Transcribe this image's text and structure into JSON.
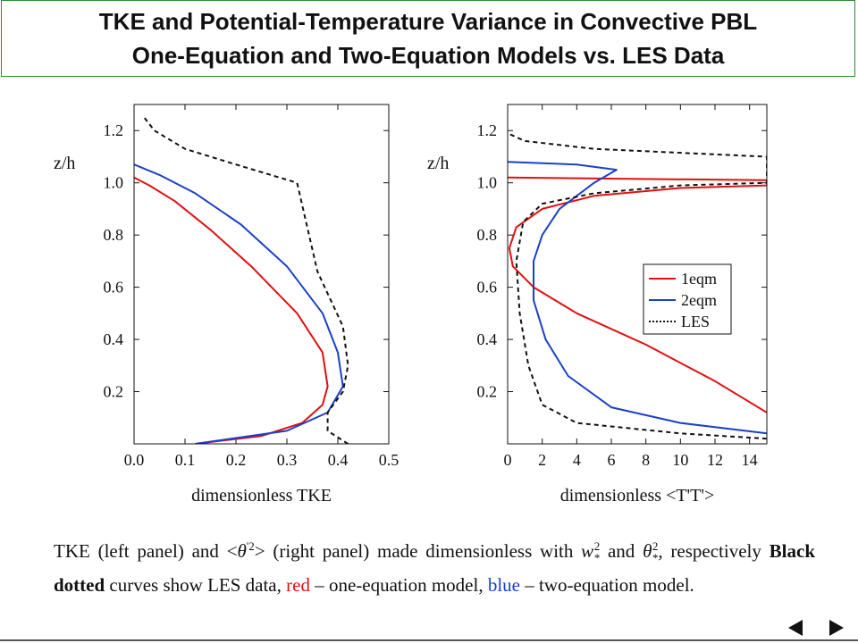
{
  "title": {
    "line1": "TKE and Potential-Temperature Variance in Convective PBL",
    "line2": "One-Equation and Two-Equation Models vs. LES Data"
  },
  "chart_data": [
    {
      "type": "line",
      "xlabel": "dimensionless TKE",
      "ylabel": "z/h",
      "xlim": [
        0.0,
        0.5
      ],
      "ylim": [
        0,
        1.3
      ],
      "xticks": [
        "0.0",
        "0.1",
        "0.2",
        "0.3",
        "0.4",
        "0.5"
      ],
      "yticks": [
        "0.2",
        "0.4",
        "0.6",
        "0.8",
        "1.0",
        "1.2"
      ],
      "series": [
        {
          "name": "1eqm",
          "color": "#e01010",
          "style": "solid",
          "points": [
            [
              0.12,
              0.0
            ],
            [
              0.25,
              0.03
            ],
            [
              0.33,
              0.08
            ],
            [
              0.37,
              0.15
            ],
            [
              0.38,
              0.22
            ],
            [
              0.37,
              0.35
            ],
            [
              0.32,
              0.5
            ],
            [
              0.23,
              0.68
            ],
            [
              0.15,
              0.82
            ],
            [
              0.08,
              0.93
            ],
            [
              0.03,
              0.99
            ],
            [
              0.0,
              1.02
            ]
          ]
        },
        {
          "name": "2eqm",
          "color": "#1a40c8",
          "style": "solid",
          "points": [
            [
              0.12,
              0.0
            ],
            [
              0.3,
              0.05
            ],
            [
              0.38,
              0.12
            ],
            [
              0.41,
              0.22
            ],
            [
              0.4,
              0.35
            ],
            [
              0.37,
              0.5
            ],
            [
              0.3,
              0.68
            ],
            [
              0.21,
              0.84
            ],
            [
              0.12,
              0.96
            ],
            [
              0.05,
              1.03
            ],
            [
              0.0,
              1.07
            ]
          ]
        },
        {
          "name": "LES",
          "color": "#111111",
          "style": "dotted",
          "points": [
            [
              0.42,
              0.0
            ],
            [
              0.38,
              0.05
            ],
            [
              0.38,
              0.12
            ],
            [
              0.41,
              0.2
            ],
            [
              0.42,
              0.3
            ],
            [
              0.41,
              0.45
            ],
            [
              0.36,
              0.66
            ],
            [
              0.32,
              1.0
            ],
            [
              0.2,
              1.07
            ],
            [
              0.1,
              1.13
            ],
            [
              0.04,
              1.2
            ],
            [
              0.02,
              1.25
            ]
          ]
        }
      ]
    },
    {
      "type": "line",
      "xlabel": "dimensionless <T'T'>",
      "ylabel": "z/h",
      "xlim": [
        0,
        15
      ],
      "ylim": [
        0,
        1.3
      ],
      "xticks": [
        "0",
        "2",
        "4",
        "6",
        "8",
        "10",
        "12",
        "14"
      ],
      "yticks": [
        "0.2",
        "0.4",
        "0.6",
        "0.8",
        "1.0",
        "1.2"
      ],
      "legend": {
        "position": "right",
        "entries": [
          "1eqm",
          "2eqm",
          "LES"
        ]
      },
      "series": [
        {
          "name": "1eqm",
          "color": "#e01010",
          "style": "solid",
          "points": [
            [
              15,
              0.12
            ],
            [
              12,
              0.24
            ],
            [
              8,
              0.38
            ],
            [
              4,
              0.5
            ],
            [
              1.5,
              0.6
            ],
            [
              0.3,
              0.68
            ],
            [
              0.1,
              0.75
            ],
            [
              0.5,
              0.83
            ],
            [
              2,
              0.9
            ],
            [
              5,
              0.95
            ],
            [
              10,
              0.98
            ],
            [
              15,
              0.99
            ],
            [
              15,
              1.01
            ],
            [
              0.0,
              1.02
            ]
          ]
        },
        {
          "name": "2eqm",
          "color": "#1a40c8",
          "style": "solid",
          "points": [
            [
              15,
              0.04
            ],
            [
              10,
              0.08
            ],
            [
              6,
              0.14
            ],
            [
              3.5,
              0.26
            ],
            [
              2.2,
              0.4
            ],
            [
              1.5,
              0.55
            ],
            [
              1.5,
              0.7
            ],
            [
              2,
              0.8
            ],
            [
              3,
              0.9
            ],
            [
              5,
              1.0
            ],
            [
              6.3,
              1.05
            ],
            [
              4,
              1.07
            ],
            [
              0.0,
              1.08
            ]
          ]
        },
        {
          "name": "LES",
          "color": "#111111",
          "style": "dotted",
          "points": [
            [
              15,
              0.02
            ],
            [
              10,
              0.04
            ],
            [
              4,
              0.08
            ],
            [
              2,
              0.15
            ],
            [
              1.2,
              0.3
            ],
            [
              0.7,
              0.5
            ],
            [
              0.5,
              0.7
            ],
            [
              0.9,
              0.85
            ],
            [
              2,
              0.92
            ],
            [
              5,
              0.96
            ],
            [
              10,
              0.99
            ],
            [
              15,
              1.0
            ],
            [
              15,
              1.1
            ],
            [
              5,
              1.13
            ],
            [
              1,
              1.16
            ],
            [
              0.0,
              1.19
            ]
          ]
        }
      ]
    }
  ],
  "caption": {
    "seg1": "TKE (left panel) and <",
    "theta": "θ",
    "prime2": "'2",
    "seg2": "> (right panel) made dimensionless with ",
    "w": "w",
    "star": "*",
    "sup2a": "2",
    "and": " and ",
    "theta2": "θ",
    "star2": "*",
    "sup2b": "2",
    "seg3": ", respectively ",
    "black_dotted": "Black dotted",
    "seg4": " curves show LES data, ",
    "red_word": "red",
    "seg5": " – one-equation model, ",
    "blue_word": "blue",
    "seg6": " – two-equation model."
  },
  "nav": {
    "prev_icon": "triangle-left-icon",
    "next_icon": "triangle-right-icon"
  }
}
